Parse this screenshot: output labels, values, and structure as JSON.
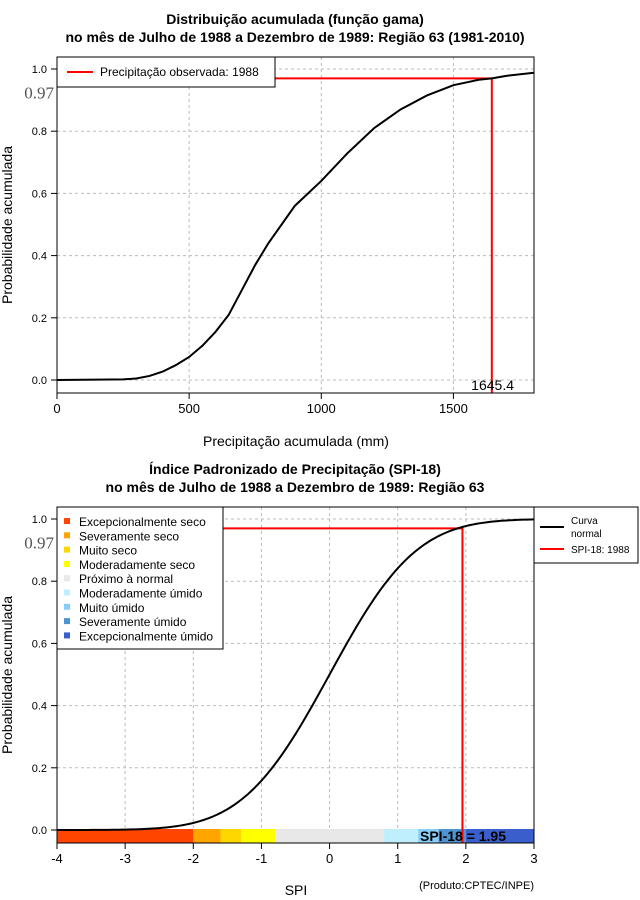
{
  "chart_data": [
    {
      "type": "line",
      "title": [
        "Distribuição acumulada (função gama)",
        "no mês de Julho de 1988 a Dezembro de 1989: Região 63 (1981-2010)"
      ],
      "xlabel": "Precipitação acumulada (mm)",
      "ylabel": "Probabilidade acumulada",
      "xlim": [
        0,
        1805
      ],
      "ylim": [
        0,
        1
      ],
      "xticks": [
        "0",
        "500",
        "1000",
        "1500"
      ],
      "yticks": [
        "0.0",
        "0.2",
        "0.4",
        "0.6",
        "0.8",
        "1.0"
      ],
      "grid": true,
      "legend": {
        "placement": "top-left",
        "entries": [
          "Precipitação observada: 1988"
        ]
      },
      "series": [
        {
          "name": "gamma-cdf",
          "color": "#000000",
          "points": [
            [
              0,
              0
            ],
            [
              250,
              0.002
            ],
            [
              300,
              0.005
            ],
            [
              350,
              0.013
            ],
            [
              400,
              0.027
            ],
            [
              450,
              0.048
            ],
            [
              500,
              0.074
            ],
            [
              550,
              0.11
            ],
            [
              600,
              0.155
            ],
            [
              650,
              0.21
            ],
            [
              700,
              0.29
            ],
            [
              750,
              0.37
            ],
            [
              800,
              0.44
            ],
            [
              850,
              0.5
            ],
            [
              900,
              0.56
            ],
            [
              950,
              0.6
            ],
            [
              1000,
              0.64
            ],
            [
              1100,
              0.73
            ],
            [
              1200,
              0.81
            ],
            [
              1300,
              0.87
            ],
            [
              1400,
              0.915
            ],
            [
              1500,
              0.948
            ],
            [
              1600,
              0.966
            ],
            [
              1645.4,
              0.97
            ],
            [
              1700,
              0.978
            ],
            [
              1805,
              0.988
            ]
          ]
        }
      ],
      "observed": {
        "x": 1645.4,
        "y": 0.97,
        "x_label": "1645.4",
        "y_label": "0.97",
        "color": "#ff0000"
      }
    },
    {
      "type": "line",
      "title": [
        "Índice Padronizado de Precipitação (SPI-18)",
        "no mês de Julho de 1988 a Dezembro de 1989: Região 63"
      ],
      "xlabel": "SPI",
      "ylabel": "Probabilidade acumulada",
      "xlim": [
        -4,
        3
      ],
      "ylim": [
        0,
        1
      ],
      "xticks": [
        "-4",
        "-3",
        "-2",
        "-1",
        "0",
        "1",
        "2",
        "3"
      ],
      "yticks": [
        "0.0",
        "0.2",
        "0.4",
        "0.6",
        "0.8",
        "1.0"
      ],
      "grid": true,
      "series": [
        {
          "name": "Curva normal",
          "color": "#000000",
          "distribution": "normal(0,1)"
        }
      ],
      "observed": {
        "x": 1.95,
        "y": 0.97,
        "y_label": "0.97",
        "label": "SPI-18 = 1.95",
        "color": "#ff0000"
      },
      "legend_right": {
        "placement": "outside-top-right",
        "entries": [
          "Curva",
          "normal",
          "SPI-18: 1988"
        ]
      },
      "categories": [
        {
          "name": "Excepcionalmente seco",
          "from": -4,
          "to": -2,
          "color": "#ff4500"
        },
        {
          "name": "Severamente seco",
          "from": -2,
          "to": -1.6,
          "color": "#ffa500"
        },
        {
          "name": "Muito seco",
          "from": -1.6,
          "to": -1.3,
          "color": "#ffd700"
        },
        {
          "name": "Moderadamente seco",
          "from": -1.3,
          "to": -0.8,
          "color": "#ffff00"
        },
        {
          "name": "Próximo à normal",
          "from": -0.8,
          "to": 0.8,
          "color": "#e8e8e8"
        },
        {
          "name": "Moderadamente úmido",
          "from": 0.8,
          "to": 1.3,
          "color": "#bfeffc"
        },
        {
          "name": "Muito úmido",
          "from": 1.3,
          "to": 1.6,
          "color": "#87cefa"
        },
        {
          "name": "Severamente úmido",
          "from": 1.6,
          "to": 2,
          "color": "#4f94d0"
        },
        {
          "name": "Excepcionalmente úmido",
          "from": 2,
          "to": 3,
          "color": "#3a5fcd"
        }
      ]
    }
  ],
  "credit": "(Produto:CPTEC/INPE)"
}
